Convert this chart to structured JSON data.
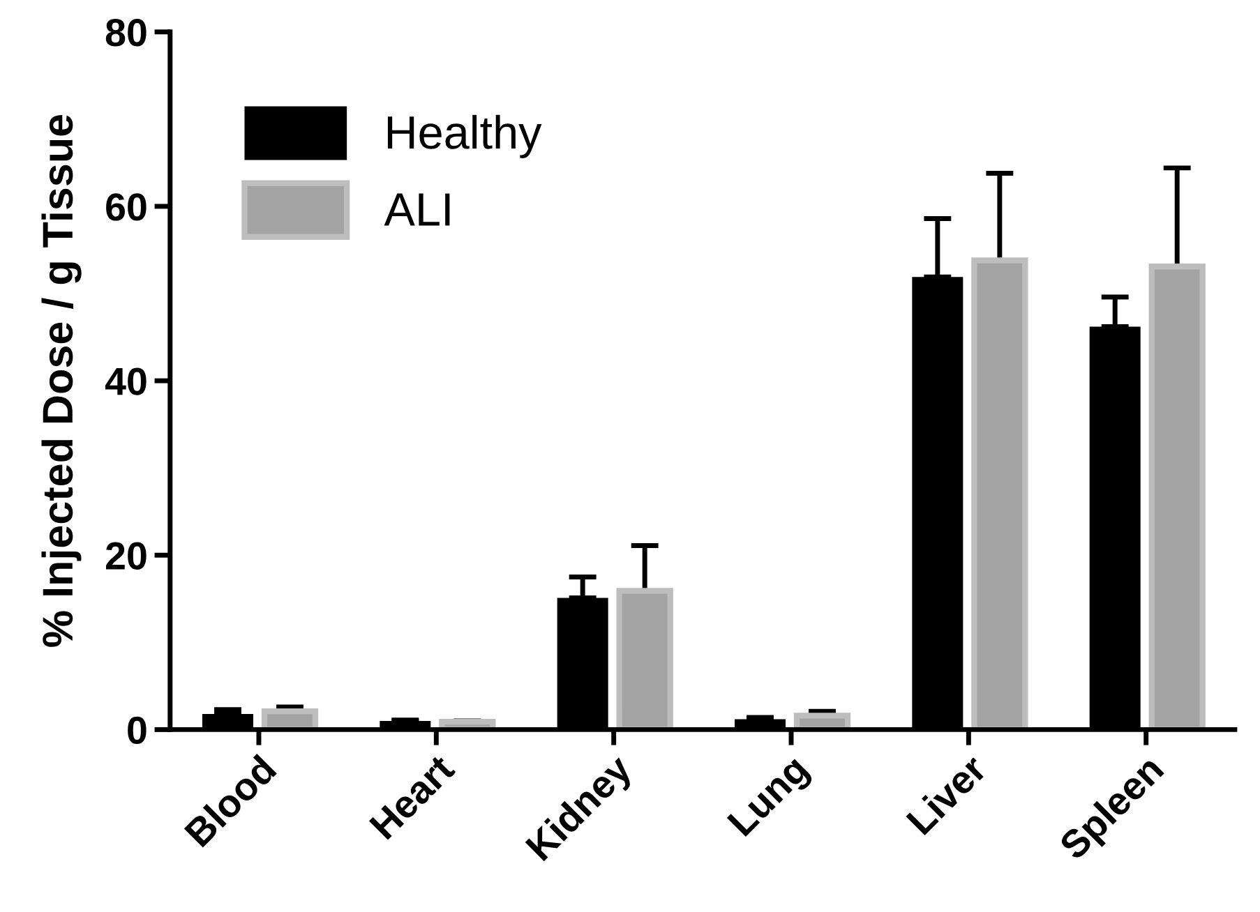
{
  "chart_data": {
    "type": "bar",
    "ylabel": "% Injected Dose / g Tissue",
    "categories": [
      "Blood",
      "Heart",
      "Kidney",
      "Lung",
      "Liver",
      "Spleen"
    ],
    "ylim": [
      0,
      80
    ],
    "yticks": [
      0,
      20,
      40,
      60,
      80
    ],
    "legend": "top left",
    "grid": false,
    "series": [
      {
        "name": "Healthy",
        "color": "#000000",
        "values": [
          1.8,
          1.0,
          15.1,
          1.2,
          51.9,
          46.2
        ],
        "errors": [
          [
            1.8,
            2.3
          ],
          [
            1.0,
            1.1
          ],
          [
            15.1,
            17.5
          ],
          [
            1.2,
            1.4
          ],
          [
            51.9,
            58.6
          ],
          [
            46.2,
            49.6
          ]
        ]
      },
      {
        "name": "ALI",
        "color": "#a3a3a3",
        "values": [
          2.1,
          0.9,
          15.9,
          1.6,
          53.8,
          53.1
        ],
        "errors": [
          [
            2.1,
            2.6
          ],
          [
            0.9,
            1.0
          ],
          [
            15.9,
            21.1
          ],
          [
            1.6,
            2.1
          ],
          [
            53.8,
            63.8
          ],
          [
            53.1,
            64.4
          ]
        ]
      }
    ]
  }
}
